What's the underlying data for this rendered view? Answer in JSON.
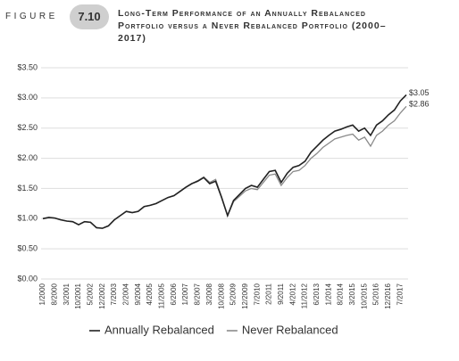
{
  "header": {
    "figure_word": "FIGURE",
    "figure_number": "7.10"
  },
  "chart_data": {
    "type": "line",
    "title": "Long-Term Performance of an Annually Rebalanced Portfolio versus a Never Rebalanced Portfolio (2000–2017)",
    "categories": [
      "1/2000",
      null,
      "8/2000",
      null,
      "3/2001",
      null,
      "10/2001",
      null,
      "5/2002",
      null,
      "12/2002",
      null,
      "7/2003",
      null,
      "2/2004",
      null,
      "9/2004",
      null,
      "4/2005",
      null,
      "11/2005",
      null,
      "6/2006",
      null,
      "1/2007",
      null,
      "8/2007",
      null,
      "3/2008",
      null,
      "10/2008",
      null,
      "5/2009",
      null,
      "12/2009",
      null,
      "7/2010",
      null,
      "2/2011",
      null,
      "9/2011",
      null,
      "4/2012",
      null,
      "11/2012",
      null,
      "6/2013",
      null,
      "1/2014",
      null,
      "8/2014",
      null,
      "3/2015",
      null,
      "10/2015",
      null,
      "5/2016",
      null,
      "12/2016",
      null,
      "7/2017",
      null
    ],
    "series": [
      {
        "name": "Annually Rebalanced",
        "color": "#222222",
        "values": [
          1.0,
          1.02,
          1.01,
          0.98,
          0.96,
          0.95,
          0.9,
          0.95,
          0.94,
          0.85,
          0.84,
          0.88,
          0.98,
          1.05,
          1.12,
          1.1,
          1.12,
          1.2,
          1.22,
          1.25,
          1.3,
          1.35,
          1.38,
          1.45,
          1.52,
          1.58,
          1.62,
          1.68,
          1.58,
          1.62,
          1.35,
          1.05,
          1.3,
          1.4,
          1.5,
          1.55,
          1.52,
          1.65,
          1.78,
          1.8,
          1.6,
          1.75,
          1.85,
          1.88,
          1.95,
          2.1,
          2.2,
          2.3,
          2.38,
          2.45,
          2.48,
          2.52,
          2.55,
          2.45,
          2.5,
          2.38,
          2.55,
          2.62,
          2.72,
          2.8,
          2.95,
          3.05
        ],
        "value_labels": [
          null,
          null,
          null,
          null,
          null,
          null,
          null,
          null,
          null,
          null,
          null,
          null,
          null,
          null,
          null,
          null,
          null,
          null,
          null,
          null,
          null,
          null,
          null,
          null,
          null,
          null,
          null,
          null,
          null,
          null,
          null,
          null,
          null,
          null,
          null,
          null,
          null,
          null,
          null,
          null,
          null,
          null,
          null,
          null,
          null,
          null,
          null,
          null,
          null,
          null,
          null,
          null,
          null,
          null,
          null,
          null,
          null,
          null,
          null,
          null,
          null,
          "$3.05"
        ]
      },
      {
        "name": "Never Rebalanced",
        "color": "#8a8a8a",
        "values": [
          1.0,
          1.02,
          1.01,
          0.98,
          0.96,
          0.95,
          0.9,
          0.95,
          0.94,
          0.85,
          0.84,
          0.88,
          0.98,
          1.05,
          1.12,
          1.1,
          1.12,
          1.2,
          1.22,
          1.25,
          1.3,
          1.35,
          1.38,
          1.45,
          1.52,
          1.58,
          1.63,
          1.69,
          1.6,
          1.65,
          1.36,
          1.05,
          1.28,
          1.37,
          1.46,
          1.5,
          1.48,
          1.6,
          1.72,
          1.74,
          1.55,
          1.68,
          1.78,
          1.8,
          1.88,
          2.0,
          2.08,
          2.18,
          2.25,
          2.32,
          2.35,
          2.38,
          2.4,
          2.3,
          2.35,
          2.2,
          2.38,
          2.45,
          2.55,
          2.62,
          2.75,
          2.86
        ],
        "value_labels": [
          null,
          null,
          null,
          null,
          null,
          null,
          null,
          null,
          null,
          null,
          null,
          null,
          null,
          null,
          null,
          null,
          null,
          null,
          null,
          null,
          null,
          null,
          null,
          null,
          null,
          null,
          null,
          null,
          null,
          null,
          null,
          null,
          null,
          null,
          null,
          null,
          null,
          null,
          null,
          null,
          null,
          null,
          null,
          null,
          null,
          null,
          null,
          null,
          null,
          null,
          null,
          null,
          null,
          null,
          null,
          null,
          null,
          null,
          null,
          null,
          null,
          "$2.86"
        ]
      }
    ],
    "ylim": [
      0,
      3.5
    ],
    "yticks": [
      {
        "value": 0,
        "label": "$0.00"
      },
      {
        "value": 0.5,
        "label": "$0.50"
      },
      {
        "value": 1,
        "label": "$1.00"
      },
      {
        "value": 1.5,
        "label": "$1.50"
      },
      {
        "value": 2,
        "label": "$2.00"
      },
      {
        "value": 2.5,
        "label": "$2.50"
      },
      {
        "value": 3,
        "label": "$3.00"
      },
      {
        "value": 3.5,
        "label": "$3.50"
      }
    ],
    "grid": true,
    "legend": "bottom"
  }
}
